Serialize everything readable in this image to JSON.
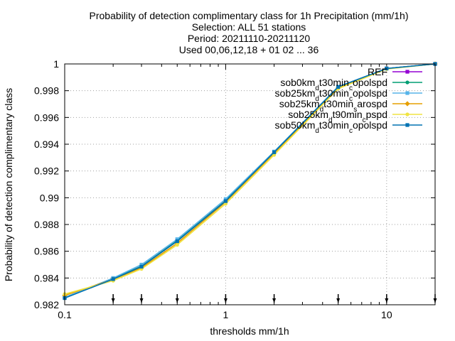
{
  "chart_data": {
    "type": "line",
    "title_lines": [
      "Probability of detection complimentary class  for 1h Precipitation (mm/1h)",
      "Selection: ALL     51 stations",
      "Period: 20211110-20211120",
      "Used 00,06,12,18 + 01 02 ... 36"
    ],
    "xlabel": "thresholds mm/1h",
    "ylabel": "Probability of detection complimentary class",
    "x_scale": "log",
    "xlim": [
      0.1,
      20
    ],
    "ylim": [
      0.982,
      1.0
    ],
    "x_ticks": [
      {
        "value": 0.1,
        "label": "0.1"
      },
      {
        "value": 1,
        "label": "1"
      },
      {
        "value": 10,
        "label": "10"
      }
    ],
    "y_ticks": [
      {
        "value": 0.982,
        "label": "0.982"
      },
      {
        "value": 0.984,
        "label": "0.984"
      },
      {
        "value": 0.986,
        "label": "0.986"
      },
      {
        "value": 0.988,
        "label": "0.988"
      },
      {
        "value": 0.99,
        "label": "0.99"
      },
      {
        "value": 0.992,
        "label": "0.992"
      },
      {
        "value": 0.994,
        "label": "0.994"
      },
      {
        "value": 0.996,
        "label": "0.996"
      },
      {
        "value": 0.998,
        "label": "0.998"
      },
      {
        "value": 1.0,
        "label": "1"
      }
    ],
    "grid": true,
    "legend_position": "top-right",
    "threshold_markers": [
      0.2,
      0.3,
      0.5,
      1,
      2,
      5,
      10,
      20
    ],
    "x": [
      0.1,
      0.2,
      0.3,
      0.5,
      1,
      2,
      5,
      10,
      20
    ],
    "series": [
      {
        "name": "REF",
        "color": "#9400d3",
        "marker": "square",
        "values": [
          0.98255,
          0.98395,
          0.98488,
          0.98679,
          0.98978,
          0.99342,
          0.99829,
          0.99966,
          1.0
        ]
      },
      {
        "name": "sob0km_dt30min_copolspd",
        "color": "#009e73",
        "marker": "circle",
        "values": [
          0.98255,
          0.98395,
          0.98488,
          0.98679,
          0.98978,
          0.99342,
          0.99829,
          0.99966,
          1.0
        ]
      },
      {
        "name": "sob25km_dt30min_copolspd",
        "color": "#56b4e9",
        "marker": "square",
        "values": [
          0.98255,
          0.984,
          0.985,
          0.9869,
          0.9899,
          0.99345,
          0.9983,
          0.99966,
          1.0
        ]
      },
      {
        "name": "sob25km_dt30min_sarospd",
        "color": "#e69f00",
        "marker": "diamond",
        "values": [
          0.9827,
          0.9839,
          0.98476,
          0.9866,
          0.98968,
          0.99332,
          0.99822,
          0.99964,
          1.0
        ]
      },
      {
        "name": "sob25km_dt90min_copspd",
        "color": "#f0e442",
        "marker": "circle",
        "values": [
          0.9828,
          0.9838,
          0.98468,
          0.98648,
          0.98955,
          0.9932,
          0.99815,
          0.99962,
          1.0
        ]
      },
      {
        "name": "sob50km_dt30min_copolspd",
        "color": "#0072b2",
        "marker": "square",
        "values": [
          0.9825,
          0.98392,
          0.98485,
          0.98675,
          0.98975,
          0.9934,
          0.99828,
          0.99966,
          1.0
        ]
      }
    ],
    "legend_labels": [
      {
        "base": "REF",
        "parts": []
      },
      {
        "base": "sob0km",
        "parts": [
          [
            "sub",
            "d"
          ],
          [
            "n",
            "t30min"
          ],
          [
            "sub",
            "c"
          ],
          [
            "n",
            "opolspd"
          ]
        ]
      },
      {
        "base": "sob25km",
        "parts": [
          [
            "sub",
            "d"
          ],
          [
            "n",
            "t30min"
          ],
          [
            "sub",
            "c"
          ],
          [
            "n",
            "opolspd"
          ]
        ]
      },
      {
        "base": "sob25km",
        "parts": [
          [
            "sub",
            "d"
          ],
          [
            "n",
            "t30min"
          ],
          [
            "sub",
            "s"
          ],
          [
            "n",
            "arospd"
          ]
        ]
      },
      {
        "base": "sob25km",
        "parts": [
          [
            "sub",
            "d"
          ],
          [
            "n",
            "t90min"
          ],
          [
            "sub",
            "c"
          ],
          [
            "n",
            "pspd"
          ]
        ]
      },
      {
        "base": "sob50km",
        "parts": [
          [
            "sub",
            "d"
          ],
          [
            "n",
            "t30min"
          ],
          [
            "sub",
            "c"
          ],
          [
            "n",
            "opolspd"
          ]
        ]
      }
    ]
  }
}
